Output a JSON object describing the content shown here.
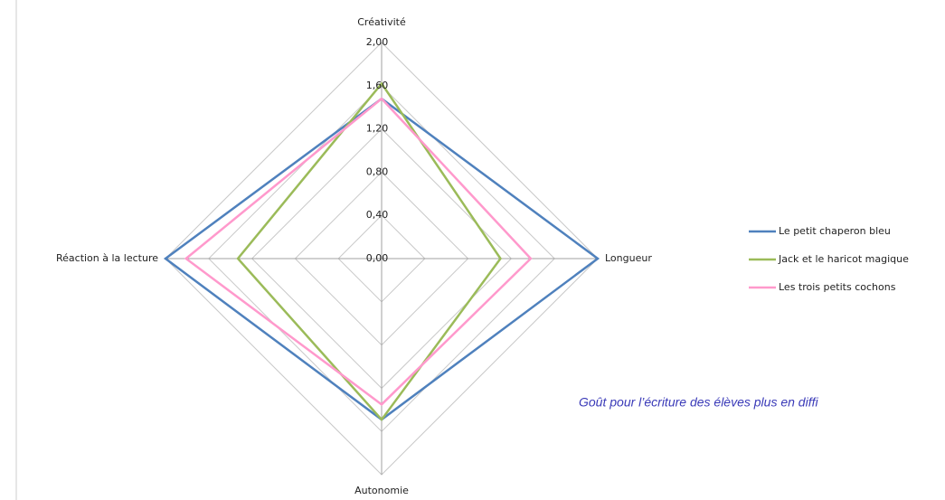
{
  "chart_data": {
    "type": "radar",
    "categories": [
      "Créativité",
      "Longueur",
      "Autonomie",
      "Réaction à la lecture"
    ],
    "series": [
      {
        "name": "Le petit chaperon bleu",
        "color": "#4F81BD",
        "values": [
          1.48,
          2.0,
          1.49,
          2.0
        ]
      },
      {
        "name": "Jack et le haricot magique",
        "color": "#9BBB59",
        "values": [
          1.62,
          1.1,
          1.49,
          1.33
        ]
      },
      {
        "name": "Les trois petits cochons",
        "color": "#FF99CC",
        "values": [
          1.48,
          1.38,
          1.35,
          1.81
        ]
      }
    ],
    "ylim": [
      0,
      2
    ],
    "yticks": [
      {
        "value": 0,
        "label": "0,00"
      },
      {
        "value": 0.4,
        "label": "0,40"
      },
      {
        "value": 0.8,
        "label": "0,80"
      },
      {
        "value": 1.2,
        "label": "1,20"
      },
      {
        "value": 1.6,
        "label": "1,60"
      },
      {
        "value": 2,
        "label": "2,00"
      }
    ],
    "grid": true,
    "legend": "right",
    "caption": "Goût pour l’écriture des élèves plus en diffi"
  }
}
